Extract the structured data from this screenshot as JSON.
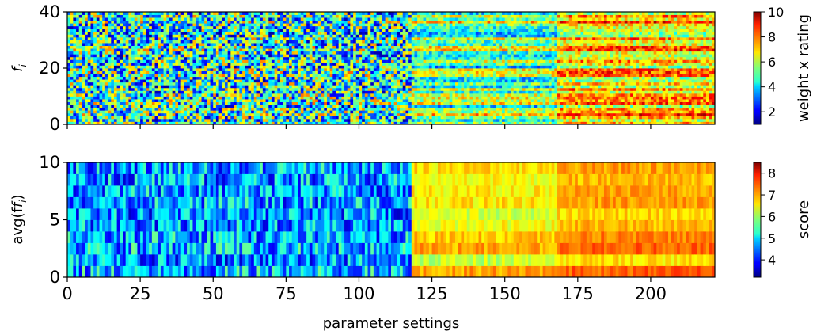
{
  "chart_data": [
    {
      "type": "heatmap",
      "panel": "top",
      "colormap": "jet",
      "n_columns": 222,
      "n_rows": 40,
      "xlim": [
        0,
        222
      ],
      "ylim": [
        0,
        40
      ],
      "yticks": [
        0,
        20,
        40
      ],
      "ylabel": "f",
      "ylabel_sub": "i",
      "colorbar": {
        "label": "weight x rating",
        "range": [
          1,
          10
        ],
        "ticks": [
          2,
          4,
          6,
          8,
          10
        ]
      },
      "regimes": [
        {
          "x_range": [
            0,
            118
          ],
          "mean": 4.6,
          "spread": 3.6,
          "note": "random-like mix, mostly blue/red/yellow"
        },
        {
          "x_range": [
            118,
            168
          ],
          "mean": 5.2,
          "spread": 3.2,
          "note": "horizontal striping, yellow/orange/cyan"
        },
        {
          "x_range": [
            168,
            222
          ],
          "mean": 6.8,
          "spread": 3.0,
          "note": "strong horizontal bands, red/orange/blue"
        }
      ]
    },
    {
      "type": "heatmap",
      "panel": "bottom",
      "colormap": "jet",
      "n_columns": 222,
      "n_rows": 10,
      "xlim": [
        0,
        222
      ],
      "ylim": [
        0,
        10
      ],
      "xticks": [
        0,
        25,
        50,
        75,
        100,
        125,
        150,
        175,
        200
      ],
      "yticks": [
        0,
        5,
        10
      ],
      "xlabel": "parameter settings",
      "ylabel": "avg(f",
      "ylabel_sub": "i",
      "ylabel_end": ")",
      "colorbar": {
        "label": "score",
        "range": [
          3.2,
          8.5
        ],
        "ticks": [
          4,
          5,
          6,
          7,
          8
        ]
      },
      "regimes": [
        {
          "x_range": [
            0,
            118
          ],
          "mean": 4.7,
          "spread": 1.2,
          "note": "mostly blue and cyan with scattered yellow"
        },
        {
          "x_range": [
            118,
            168
          ],
          "mean": 6.6,
          "spread": 0.8,
          "note": "yellow/orange"
        },
        {
          "x_range": [
            168,
            222
          ],
          "mean": 7.0,
          "spread": 0.7,
          "note": "orange/red, darkest red near row 7-8"
        }
      ]
    }
  ]
}
